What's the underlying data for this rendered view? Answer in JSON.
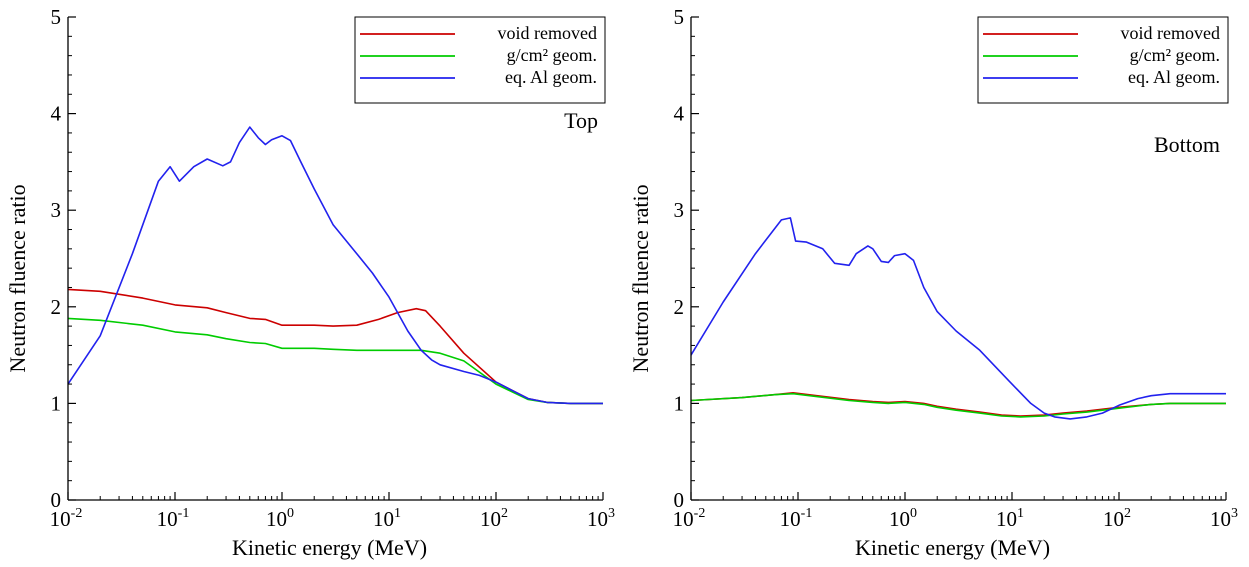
{
  "chart_data": [
    {
      "type": "line",
      "panel_label": "Top",
      "xlabel": "Kinetic energy (MeV)",
      "ylabel": "Neutron fluence ratio",
      "x_scale": "log",
      "xlim": [
        0.01,
        1000
      ],
      "ylim": [
        0,
        5
      ],
      "x_ticks": [
        {
          "value": 0.01,
          "base": "10",
          "exp": "-2"
        },
        {
          "value": 0.1,
          "base": "10",
          "exp": "-1"
        },
        {
          "value": 1,
          "base": "10",
          "exp": "0"
        },
        {
          "value": 10,
          "base": "10",
          "exp": "1"
        },
        {
          "value": 100,
          "base": "10",
          "exp": "2"
        },
        {
          "value": 1000,
          "base": "10",
          "exp": "3"
        }
      ],
      "y_ticks": [
        "0",
        "1",
        "2",
        "3",
        "4",
        "5"
      ],
      "legend_position": "top-right",
      "grid": false,
      "series": [
        {
          "name": "void removed",
          "color": "#cc0000",
          "x": [
            0.01,
            0.02,
            0.05,
            0.1,
            0.2,
            0.3,
            0.5,
            0.7,
            1,
            2,
            3,
            5,
            8,
            12,
            18,
            22,
            30,
            50,
            100,
            200,
            300,
            500,
            1000
          ],
          "y": [
            2.18,
            2.16,
            2.09,
            2.02,
            1.99,
            1.94,
            1.88,
            1.87,
            1.81,
            1.81,
            1.8,
            1.81,
            1.87,
            1.94,
            1.98,
            1.96,
            1.8,
            1.52,
            1.22,
            1.05,
            1.01,
            1.0,
            1.0
          ]
        },
        {
          "name": "g/cm² geom.",
          "color": "#00cc00",
          "x": [
            0.01,
            0.02,
            0.05,
            0.1,
            0.2,
            0.3,
            0.5,
            0.7,
            1,
            2,
            3,
            5,
            10,
            20,
            30,
            50,
            100,
            200,
            300,
            500,
            1000
          ],
          "y": [
            1.88,
            1.86,
            1.81,
            1.74,
            1.71,
            1.67,
            1.63,
            1.62,
            1.57,
            1.57,
            1.56,
            1.55,
            1.55,
            1.55,
            1.52,
            1.44,
            1.2,
            1.04,
            1.01,
            1.0,
            1.0
          ]
        },
        {
          "name": "eq. Al geom.",
          "color": "#2222ee",
          "x": [
            0.01,
            0.02,
            0.04,
            0.07,
            0.09,
            0.11,
            0.15,
            0.2,
            0.28,
            0.33,
            0.4,
            0.5,
            0.6,
            0.7,
            0.8,
            1.0,
            1.2,
            1.5,
            2,
            3,
            5,
            7,
            10,
            15,
            20,
            25,
            30,
            50,
            70,
            100,
            150,
            200,
            300,
            500,
            1000
          ],
          "y": [
            1.2,
            1.7,
            2.55,
            3.3,
            3.45,
            3.3,
            3.45,
            3.53,
            3.46,
            3.5,
            3.7,
            3.86,
            3.75,
            3.68,
            3.73,
            3.77,
            3.72,
            3.5,
            3.22,
            2.85,
            2.55,
            2.35,
            2.1,
            1.75,
            1.55,
            1.45,
            1.4,
            1.33,
            1.29,
            1.22,
            1.12,
            1.05,
            1.01,
            1.0,
            1.0
          ]
        }
      ]
    },
    {
      "type": "line",
      "panel_label": "Bottom",
      "xlabel": "Kinetic energy (MeV)",
      "ylabel": "Neutron fluence ratio",
      "x_scale": "log",
      "xlim": [
        0.01,
        1000
      ],
      "ylim": [
        0,
        5
      ],
      "x_ticks": [
        {
          "value": 0.01,
          "base": "10",
          "exp": "-2"
        },
        {
          "value": 0.1,
          "base": "10",
          "exp": "-1"
        },
        {
          "value": 1,
          "base": "10",
          "exp": "0"
        },
        {
          "value": 10,
          "base": "10",
          "exp": "1"
        },
        {
          "value": 100,
          "base": "10",
          "exp": "2"
        },
        {
          "value": 1000,
          "base": "10",
          "exp": "3"
        }
      ],
      "y_ticks": [
        "0",
        "1",
        "2",
        "3",
        "4",
        "5"
      ],
      "legend_position": "top-right",
      "grid": false,
      "series": [
        {
          "name": "void removed",
          "color": "#cc0000",
          "x": [
            0.01,
            0.03,
            0.06,
            0.09,
            0.15,
            0.3,
            0.5,
            0.7,
            1,
            1.5,
            2,
            3,
            5,
            8,
            12,
            20,
            30,
            50,
            100,
            200,
            300,
            500,
            1000
          ],
          "y": [
            1.03,
            1.06,
            1.09,
            1.11,
            1.08,
            1.04,
            1.02,
            1.01,
            1.02,
            1.0,
            0.97,
            0.94,
            0.91,
            0.88,
            0.87,
            0.88,
            0.9,
            0.92,
            0.96,
            0.99,
            1.0,
            1.0,
            1.0
          ]
        },
        {
          "name": "g/cm² geom.",
          "color": "#00cc00",
          "x": [
            0.01,
            0.03,
            0.06,
            0.09,
            0.15,
            0.3,
            0.5,
            0.7,
            1,
            1.5,
            2,
            3,
            5,
            8,
            12,
            20,
            30,
            50,
            100,
            200,
            300,
            500,
            1000
          ],
          "y": [
            1.03,
            1.06,
            1.09,
            1.1,
            1.07,
            1.03,
            1.01,
            1.0,
            1.01,
            0.99,
            0.96,
            0.93,
            0.9,
            0.87,
            0.86,
            0.87,
            0.89,
            0.91,
            0.95,
            0.99,
            1.0,
            1.0,
            1.0
          ]
        },
        {
          "name": "eq. Al geom.",
          "color": "#2222ee",
          "x": [
            0.01,
            0.02,
            0.04,
            0.07,
            0.085,
            0.095,
            0.12,
            0.17,
            0.22,
            0.3,
            0.35,
            0.45,
            0.5,
            0.6,
            0.7,
            0.8,
            1.0,
            1.2,
            1.5,
            2,
            3,
            5,
            7,
            10,
            15,
            20,
            25,
            35,
            50,
            70,
            100,
            150,
            200,
            300,
            500,
            1000
          ],
          "y": [
            1.5,
            2.05,
            2.55,
            2.9,
            2.92,
            2.68,
            2.67,
            2.6,
            2.45,
            2.43,
            2.55,
            2.63,
            2.6,
            2.47,
            2.46,
            2.53,
            2.55,
            2.48,
            2.2,
            1.95,
            1.75,
            1.55,
            1.38,
            1.2,
            1.0,
            0.9,
            0.86,
            0.84,
            0.86,
            0.9,
            0.98,
            1.05,
            1.08,
            1.1,
            1.1,
            1.1
          ]
        }
      ]
    }
  ]
}
